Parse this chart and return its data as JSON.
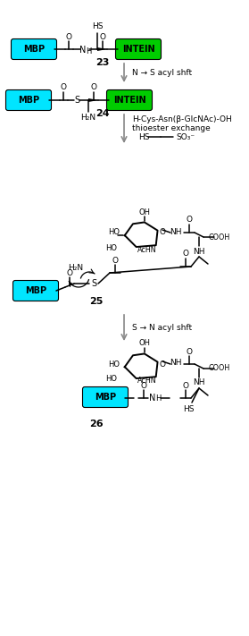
{
  "fig_width": 2.79,
  "fig_height": 7.11,
  "dpi": 100,
  "bg_color": "#ffffff",
  "mbp_color": "#00e5ff",
  "intein_color": "#00cc00",
  "mbp_text": "MBP",
  "intein_text": "INTEIN",
  "compound_labels": [
    "23",
    "24",
    "25",
    "26"
  ],
  "arrow_color": "#888888",
  "arrow_labels": [
    "N → S acyl shft",
    "H-Cys-Asn(β-GlcNAc)-OH",
    "thioester exchange",
    "S → N acyl shft"
  ]
}
